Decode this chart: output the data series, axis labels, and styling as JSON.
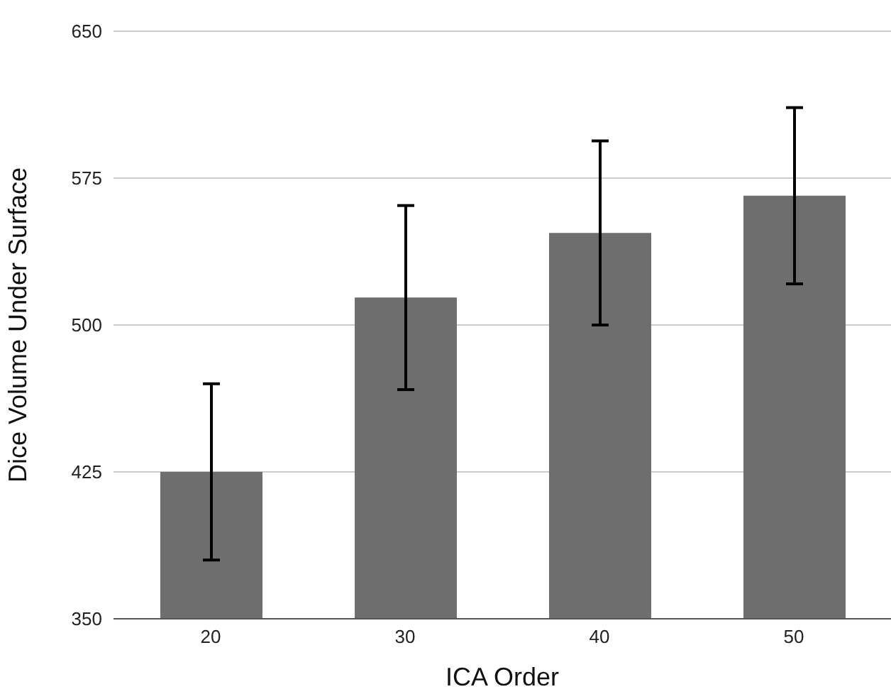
{
  "chart_data": {
    "type": "bar",
    "xlabel": "ICA Order",
    "ylabel": "Dice Volume Under Surface",
    "categories": [
      "20",
      "30",
      "40",
      "50"
    ],
    "values": [
      425,
      514,
      547,
      566
    ],
    "errors": [
      45,
      47,
      47,
      45
    ],
    "color": "#6e6e6e",
    "ylim": [
      350,
      650
    ],
    "yticks": [
      350,
      425,
      500,
      575,
      650
    ],
    "grid": "y",
    "legend": false
  }
}
